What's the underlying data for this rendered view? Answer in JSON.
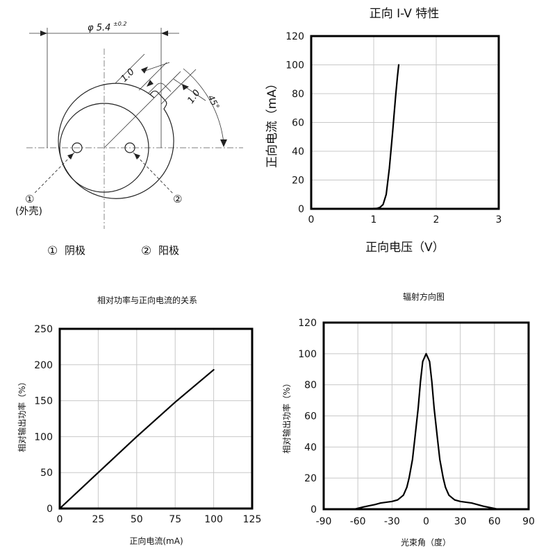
{
  "drawing": {
    "diameter_label": "φ 5.4",
    "diameter_tol": "±0.2",
    "dim_1": "1.0",
    "dim_2": "1.0",
    "angle_label": "45°",
    "pin1_marker": "①",
    "pin1_note": "(外壳)",
    "pin2_marker": "②",
    "legend": [
      {
        "marker": "①",
        "text": "阴极"
      },
      {
        "marker": "②",
        "text": "阳极"
      }
    ]
  },
  "chart_data": [
    {
      "id": "iv",
      "type": "line",
      "title": "正向 I-V 特性",
      "xlabel": "正向电压（V）",
      "ylabel": "正向电流（mA）",
      "xlim": [
        0,
        3
      ],
      "ylim": [
        0,
        120
      ],
      "xticks": [
        0,
        1,
        2,
        3
      ],
      "yticks": [
        0,
        20,
        40,
        60,
        80,
        100,
        120
      ],
      "grid": true,
      "series": [
        {
          "x": [
            0.9,
            1.05,
            1.1,
            1.15,
            1.2,
            1.25,
            1.3,
            1.35,
            1.38,
            1.4
          ],
          "y": [
            0,
            0.3,
            1,
            3,
            10,
            28,
            52,
            78,
            92,
            100
          ]
        }
      ]
    },
    {
      "id": "po",
      "type": "line",
      "title": "相对功率与正向电流的关系",
      "xlabel": "正向电流(mA)",
      "ylabel": "相对输出功率（%）",
      "xlim": [
        0,
        125
      ],
      "ylim": [
        0,
        250
      ],
      "xticks": [
        0,
        25,
        50,
        75,
        100,
        125
      ],
      "yticks": [
        0,
        50,
        100,
        150,
        200,
        250
      ],
      "grid": true,
      "series": [
        {
          "x": [
            0,
            25,
            50,
            75,
            100
          ],
          "y": [
            0,
            50,
            100,
            148,
            193
          ]
        }
      ]
    },
    {
      "id": "rad",
      "type": "line",
      "title": "辐射方向图",
      "xlabel": "光束角（度）",
      "ylabel": "相对输出功率（%）",
      "xlim": [
        -90,
        90
      ],
      "ylim": [
        0,
        120
      ],
      "xticks": [
        -90,
        -60,
        -30,
        0,
        30,
        60,
        90
      ],
      "yticks": [
        0,
        20,
        40,
        60,
        80,
        100,
        120
      ],
      "grid": true,
      "series": [
        {
          "x": [
            -63,
            -55,
            -45,
            -40,
            -30,
            -25,
            -20,
            -17,
            -15,
            -12,
            -10,
            -7,
            -5,
            -3,
            0,
            3,
            5,
            7,
            10,
            12,
            15,
            17,
            20,
            25,
            30,
            40,
            50,
            63
          ],
          "y": [
            0,
            1.5,
            3,
            4,
            5,
            6,
            9,
            14,
            20,
            32,
            45,
            65,
            82,
            95,
            100,
            95,
            82,
            65,
            45,
            32,
            20,
            14,
            9,
            6,
            5,
            4,
            2,
            0
          ]
        }
      ]
    }
  ]
}
